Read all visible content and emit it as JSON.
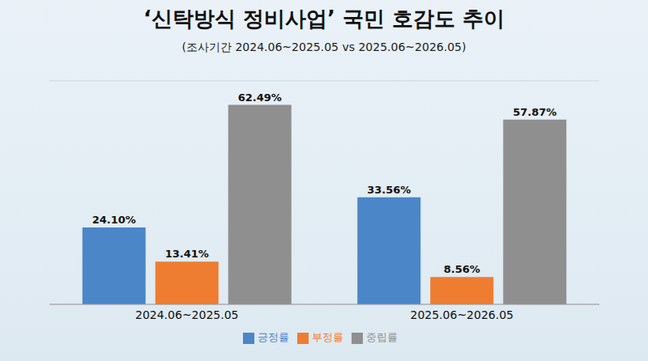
{
  "chart_data": {
    "type": "bar",
    "title": "‘신탁방식 정비사업’ 국민 호감도 추이",
    "subtitle": "(조사기간 2024.06~2025.05 vs 2025.06~2026.05)",
    "categories": [
      "2024.06~2025.05",
      "2025.06~2026.05"
    ],
    "series": [
      {
        "name": "긍정률",
        "color": "#4a86c8",
        "values": [
          24.1,
          33.56
        ],
        "value_labels": [
          "24.10%",
          "33.56%"
        ]
      },
      {
        "name": "부정률",
        "color": "#ee7d31",
        "values": [
          13.41,
          8.56
        ],
        "value_labels": [
          "13.41%",
          "8.56%"
        ]
      },
      {
        "name": "중립률",
        "color": "#8f8f8f",
        "values": [
          62.49,
          57.87
        ],
        "value_labels": [
          "62.49%",
          "57.87%"
        ]
      }
    ],
    "ylim": [
      0,
      70
    ],
    "yticks": [
      0,
      10,
      20,
      30,
      40,
      50,
      60,
      70
    ],
    "grid": true,
    "data_labels": true,
    "tick_labels": "x",
    "legend": "bottom"
  }
}
